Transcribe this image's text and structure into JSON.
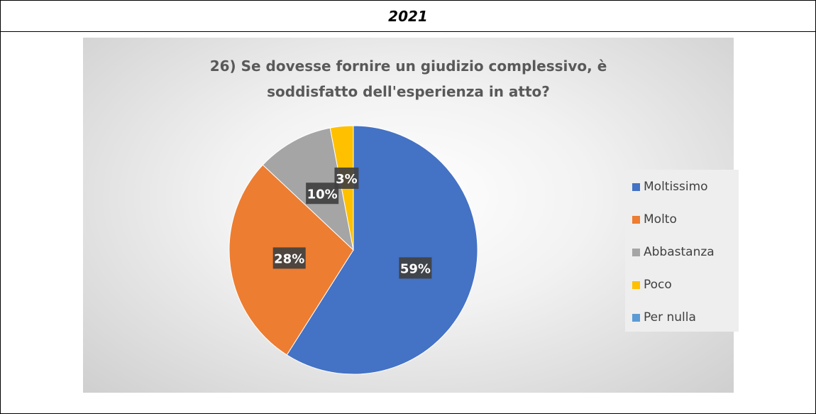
{
  "header": {
    "year": "2021"
  },
  "chart_data": {
    "type": "pie",
    "title_lines": [
      "26) Se dovesse fornire un giudizio complessivo, è",
      "soddisfatto dell'esperienza in atto?"
    ],
    "categories": [
      "Moltissimo",
      "Molto",
      "Abbastanza",
      "Poco",
      "Per nulla"
    ],
    "values": [
      59,
      28,
      10,
      3,
      0
    ],
    "data_labels": [
      "59%",
      "28%",
      "10%",
      "3%",
      ""
    ],
    "colors": [
      "#4472c4",
      "#ed7d31",
      "#a5a5a5",
      "#ffc000",
      "#5b9bd5"
    ],
    "legend_position": "right"
  }
}
